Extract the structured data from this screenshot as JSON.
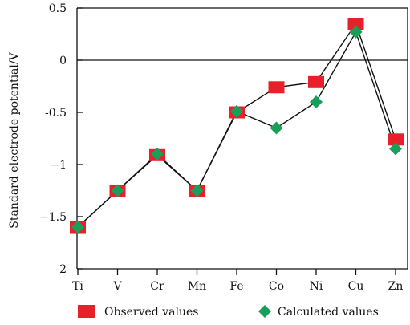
{
  "chart_data": {
    "type": "line",
    "title": "",
    "xlabel": "",
    "ylabel": "Standard electrode potential/V",
    "ylim": [
      -2,
      0.5
    ],
    "yticks": [
      0.5,
      0,
      -0.5,
      -1,
      -1.5,
      -2
    ],
    "ytick_labels": [
      "0.5",
      "0",
      "-0.5",
      "−1",
      "−1.5",
      "-2"
    ],
    "categories": [
      "Ti",
      "V",
      "Cr",
      "Mn",
      "Fe",
      "Co",
      "Ni",
      "Cu",
      "Zn"
    ],
    "zero_line": true,
    "grid": false,
    "legend_position": "bottom",
    "series": [
      {
        "name": "Observed values",
        "marker": "square",
        "color": "#e8202a",
        "values": [
          -1.6,
          -1.25,
          -0.91,
          -1.25,
          -0.5,
          -0.26,
          -0.21,
          0.35,
          -0.76
        ]
      },
      {
        "name": "Calculated values",
        "marker": "diamond",
        "color": "#16a05a",
        "values": [
          -1.6,
          -1.25,
          -0.9,
          -1.25,
          -0.49,
          -0.65,
          -0.4,
          0.27,
          -0.85
        ]
      }
    ]
  },
  "colors": {
    "axis": "#111111",
    "line": "#111111"
  }
}
